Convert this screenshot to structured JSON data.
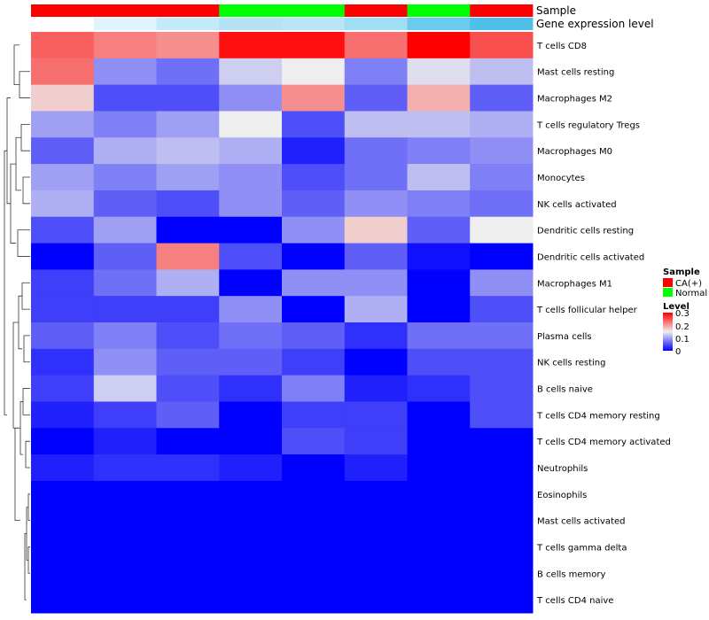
{
  "chart_data": {
    "type": "heatmap",
    "rows": [
      "T cells CD8",
      "Mast cells resting",
      "Macrophages M2",
      "T cells regulatory  Tregs",
      "Macrophages M0",
      "Monocytes",
      "NK cells activated",
      "Dendritic cells resting",
      "Dendritic cells activated",
      "Macrophages M1",
      "T cells follicular helper",
      "Plasma cells",
      "NK cells resting",
      "B cells naive",
      "T cells CD4 memory resting",
      "T cells CD4 memory activated",
      "Neutrophils",
      "Eosinophils",
      "Mast cells activated",
      "T cells gamma delta",
      "B cells memory",
      "T cells CD4 naive"
    ],
    "column_annotations": {
      "sample_title": "Sample",
      "sample": [
        "CA(+)",
        "CA(+)",
        "CA(+)",
        "Normal",
        "Normal",
        "CA(+)",
        "Normal",
        "CA(+)"
      ],
      "gene_title": "Gene expression level",
      "gene_expression_level": [
        0.0,
        0.05,
        0.1,
        0.13,
        0.12,
        0.16,
        0.25,
        0.3
      ]
    },
    "values": [
      [
        0.24,
        0.22,
        0.21,
        0.29,
        0.29,
        0.23,
        0.3,
        0.25
      ],
      [
        0.23,
        0.09,
        0.07,
        0.13,
        0.15,
        0.08,
        0.14,
        0.12
      ],
      [
        0.17,
        0.05,
        0.05,
        0.09,
        0.21,
        0.06,
        0.19,
        0.06
      ],
      [
        0.1,
        0.08,
        0.1,
        0.15,
        0.05,
        0.12,
        0.12,
        0.11
      ],
      [
        0.06,
        0.11,
        0.12,
        0.11,
        0.02,
        0.07,
        0.08,
        0.09
      ],
      [
        0.1,
        0.08,
        0.1,
        0.09,
        0.05,
        0.07,
        0.12,
        0.08
      ],
      [
        0.11,
        0.06,
        0.05,
        0.09,
        0.06,
        0.09,
        0.08,
        0.07
      ],
      [
        0.05,
        0.1,
        0.0,
        0.0,
        0.09,
        0.17,
        0.06,
        0.15
      ],
      [
        0.0,
        0.06,
        0.22,
        0.05,
        0.0,
        0.06,
        0.01,
        0.0
      ],
      [
        0.04,
        0.07,
        0.11,
        0.0,
        0.09,
        0.09,
        0.0,
        0.09
      ],
      [
        0.04,
        0.04,
        0.04,
        0.09,
        0.0,
        0.11,
        0.0,
        0.05
      ],
      [
        0.06,
        0.08,
        0.05,
        0.07,
        0.06,
        0.03,
        0.07,
        0.07
      ],
      [
        0.03,
        0.09,
        0.06,
        0.06,
        0.04,
        0.0,
        0.05,
        0.05
      ],
      [
        0.04,
        0.13,
        0.05,
        0.03,
        0.08,
        0.02,
        0.03,
        0.05
      ],
      [
        0.02,
        0.04,
        0.06,
        0.0,
        0.04,
        0.04,
        0.0,
        0.05
      ],
      [
        0.0,
        0.02,
        0.0,
        0.0,
        0.05,
        0.04,
        0.0,
        0.0
      ],
      [
        0.02,
        0.03,
        0.03,
        0.02,
        0.0,
        0.02,
        0.0,
        0.0
      ],
      [
        0.0,
        0.0,
        0.0,
        0.0,
        0.0,
        0.0,
        0.0,
        0.0
      ],
      [
        0.0,
        0.0,
        0.0,
        0.0,
        0.0,
        0.0,
        0.0,
        0.0
      ],
      [
        0.0,
        0.0,
        0.0,
        0.0,
        0.0,
        0.0,
        0.0,
        0.0
      ],
      [
        0.0,
        0.0,
        0.0,
        0.0,
        0.0,
        0.0,
        0.0,
        0.0
      ],
      [
        0.0,
        0.0,
        0.0,
        0.0,
        0.0,
        0.0,
        0.0,
        0.0
      ]
    ],
    "color_scale": {
      "domain": [
        0,
        0.15,
        0.3
      ],
      "colors": [
        "#0000ff",
        "#eeeeee",
        "#ff0000"
      ]
    },
    "gene_color_scale": {
      "domain": [
        0,
        0.3
      ],
      "colors": [
        "#ffffff",
        "#4fbfe8"
      ]
    },
    "legend": {
      "sample_title": "Sample",
      "sample_entries": [
        {
          "label": "CA(+)",
          "color": "#ff0000"
        },
        {
          "label": "Normal",
          "color": "#00ff00"
        }
      ],
      "level_title": "Level",
      "level_ticks": [
        "0.3",
        "0.2",
        "0.1",
        "0"
      ],
      "position": "right"
    },
    "dendrogram": "row"
  }
}
